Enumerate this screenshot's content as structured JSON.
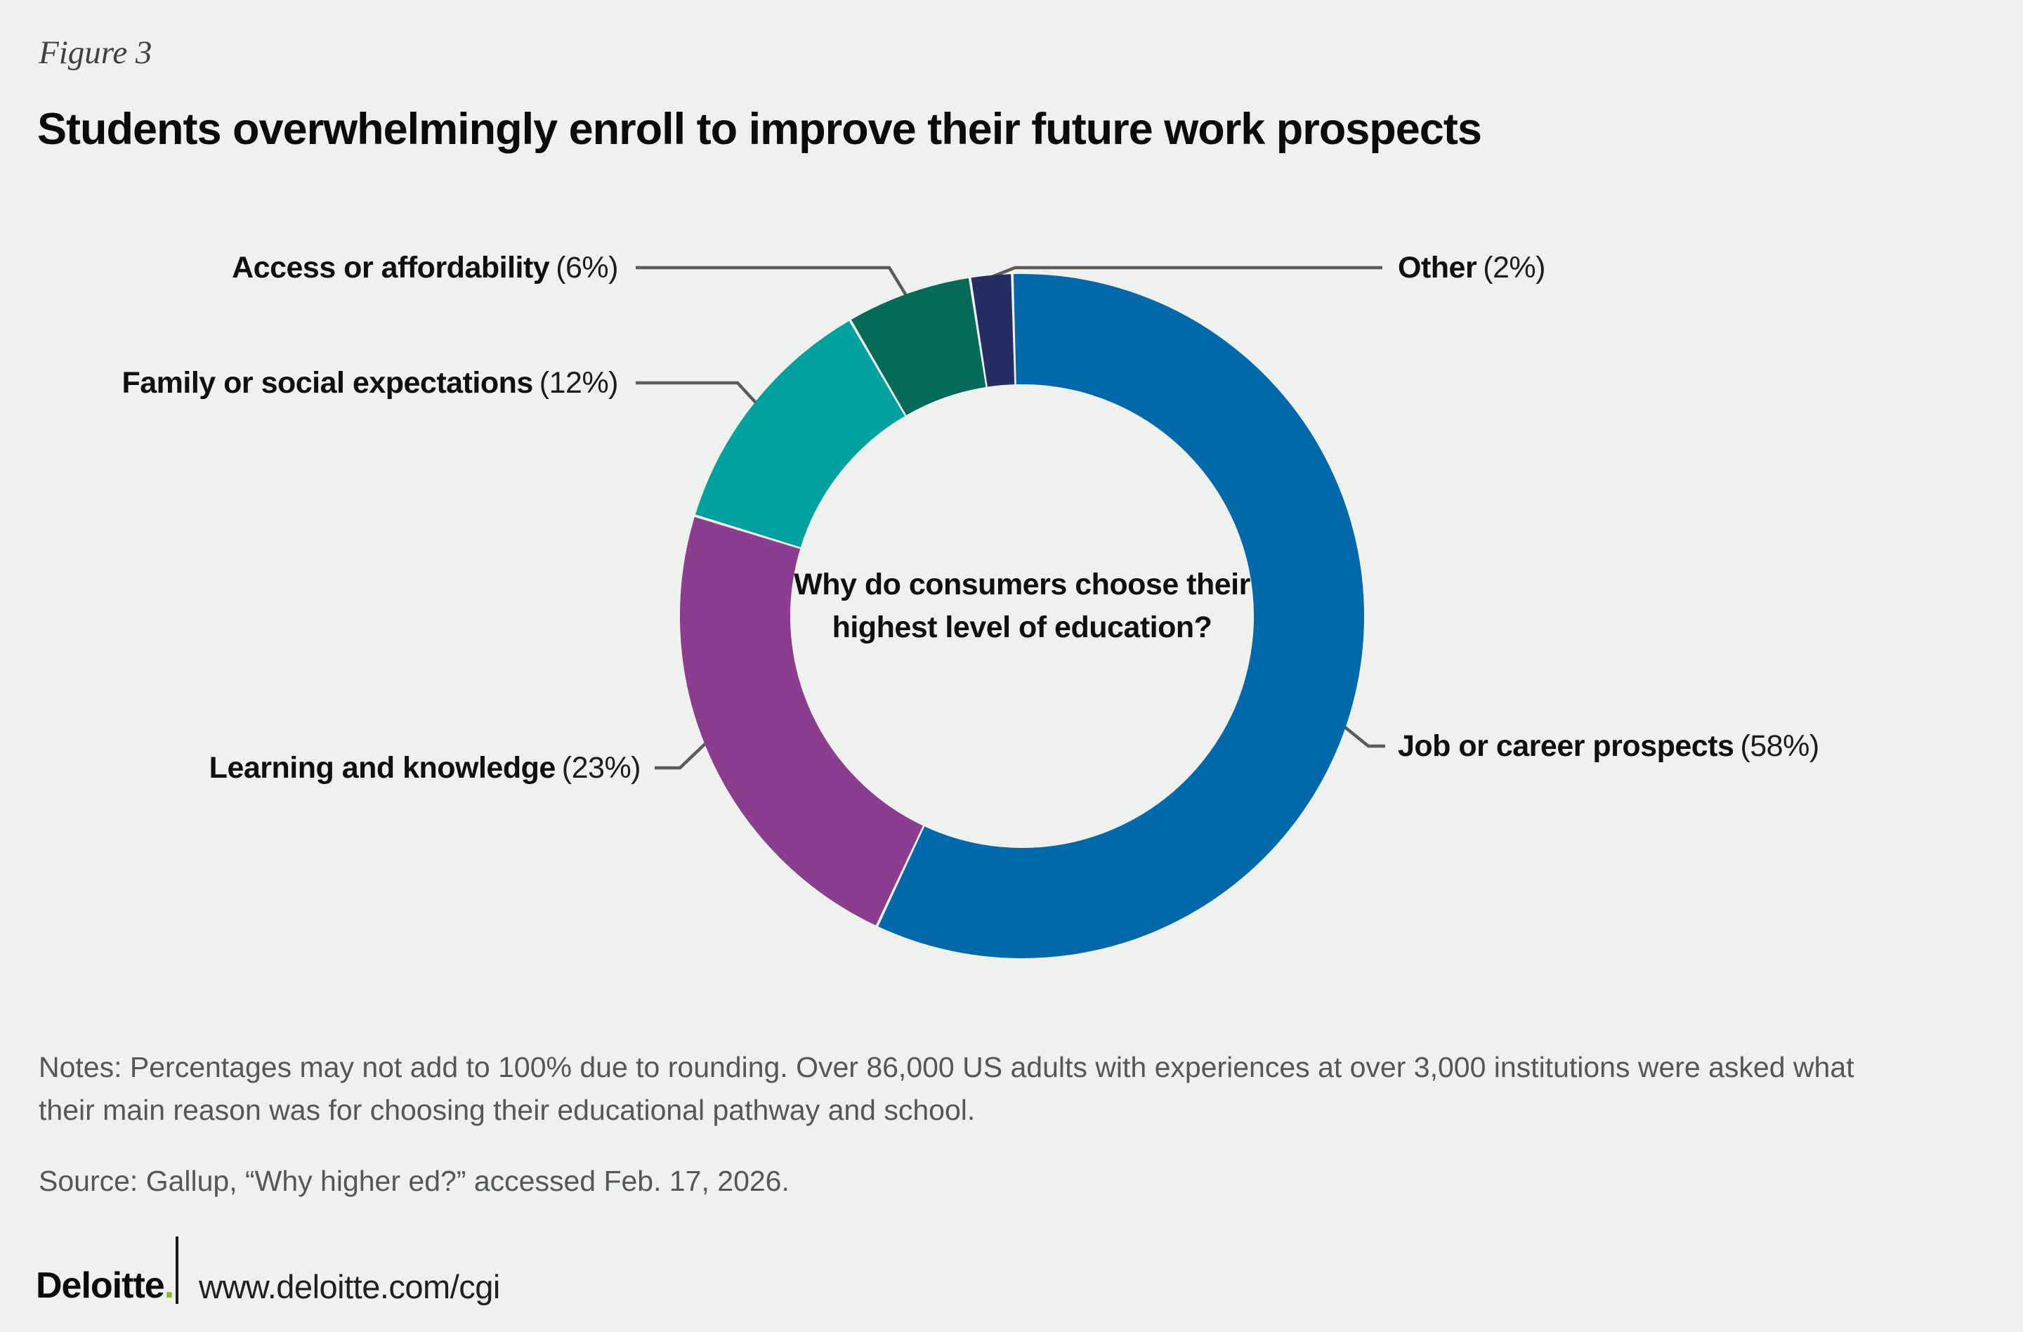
{
  "figure_label": "Figure 3",
  "title": "Students overwhelmingly enroll to improve their future work prospects",
  "chart_data": {
    "type": "pie",
    "subtype": "donut",
    "title": "Why do consumers choose their highest level of education?",
    "center_label_lines": [
      "Why do consumers choose their",
      "highest level of education?"
    ],
    "start_angle": "top",
    "direction": "clockwise",
    "value_unit": "%",
    "legend_position": "callouts",
    "segments": [
      {
        "label": "Job or career prospects",
        "value": 58,
        "color": "#0169a9"
      },
      {
        "label": "Learning and knowledge",
        "value": 23,
        "color": "#8b3e8f"
      },
      {
        "label": "Family or social expectations",
        "value": 12,
        "color": "#00a09f"
      },
      {
        "label": "Access or affordability",
        "value": 6,
        "color": "#066a5a"
      },
      {
        "label": "Other",
        "value": 2,
        "color": "#262d63"
      }
    ]
  },
  "notes_lines": [
    "Notes: Percentages may not add to 100% due to rounding. Over 86,000 US adults with experiences at over 3,000 institutions were asked what",
    "their main reason was for choosing their educational pathway and school."
  ],
  "source": "Source: Gallup, “Why higher ed?” accessed Feb. 17, 2026.",
  "footer": {
    "brand": "Deloitte",
    "brand_dot": ".",
    "url": "www.deloitte.com/cgi"
  },
  "colors": {
    "background": "#eff1ef",
    "leader_line": "#595b5e",
    "brand_green": "#86bc25",
    "muted_text": "#54575a"
  }
}
